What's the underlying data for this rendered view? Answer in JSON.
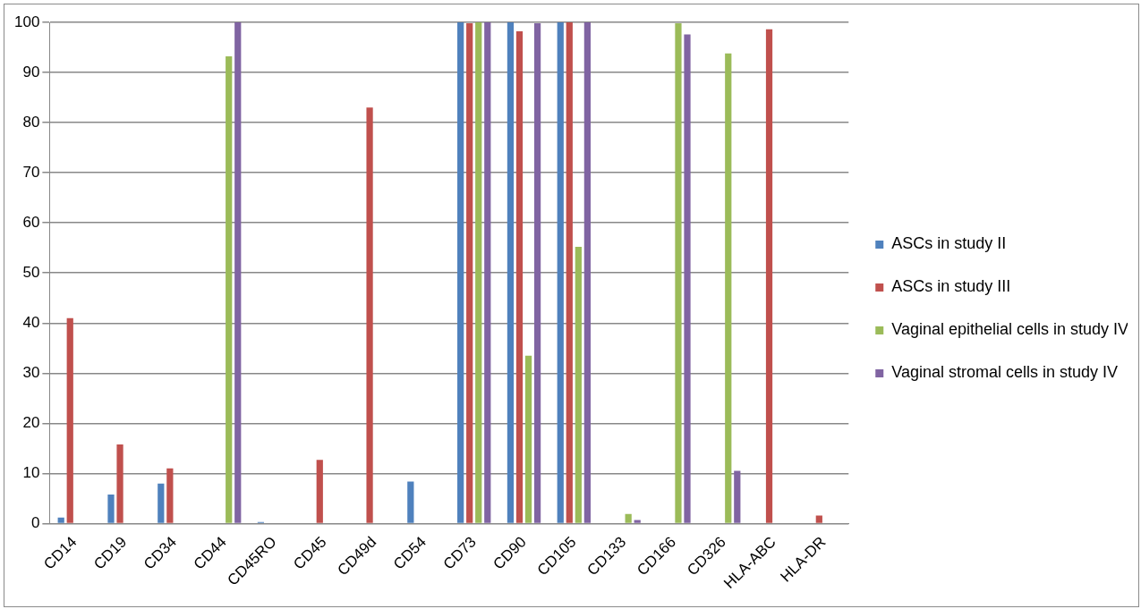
{
  "chart_data": {
    "type": "bar",
    "categories": [
      "CD14",
      "CD19",
      "CD34",
      "CD44",
      "CD45RO",
      "CD45",
      "CD49d",
      "CD54",
      "CD73",
      "CD90",
      "CD105",
      "CD133",
      "CD166",
      "CD326",
      "HLA-ABC",
      "HLA-DR"
    ],
    "series": [
      {
        "name": "ASCs in study II",
        "color": "#4f81bd",
        "values": [
          1.2,
          5.8,
          8,
          null,
          0.3,
          null,
          null,
          8.4,
          100,
          100,
          100,
          null,
          null,
          null,
          null,
          null
        ]
      },
      {
        "name": "ASCs in study III",
        "color": "#c0504d",
        "values": [
          41,
          15.8,
          11,
          null,
          null,
          12.7,
          83,
          null,
          99.8,
          98.2,
          100,
          null,
          null,
          null,
          98.6,
          1.6
        ]
      },
      {
        "name": "Vaginal epithelial cells in study IV",
        "color": "#9bbb59",
        "values": [
          null,
          null,
          null,
          93.2,
          null,
          null,
          null,
          null,
          100,
          33.5,
          55.2,
          1.9,
          99.8,
          93.8,
          null,
          null
        ]
      },
      {
        "name": "Vaginal stromal cells in study IV",
        "color": "#8064a2",
        "values": [
          null,
          null,
          null,
          100,
          null,
          null,
          null,
          null,
          100,
          99.8,
          100,
          0.7,
          97.6,
          10.5,
          null,
          null
        ]
      }
    ],
    "ylim": [
      0,
      100
    ],
    "yticks": [
      0,
      10,
      20,
      30,
      40,
      50,
      60,
      70,
      80,
      90,
      100
    ],
    "grid": "y",
    "legend": "right"
  }
}
